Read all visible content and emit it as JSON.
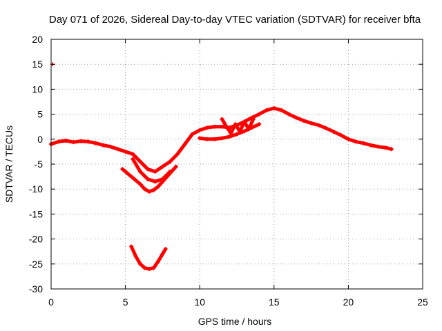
{
  "chart_data": {
    "type": "scatter",
    "title": "Day 071 of 2026, Sidereal Day-to-day VTEC variation (SDTVAR) for receiver bfta",
    "xlabel": "GPS time / hours",
    "ylabel": "SDTVAR / TECUs",
    "xlim": [
      0,
      25
    ],
    "ylim": [
      -30,
      20
    ],
    "xticks": [
      0,
      5,
      10,
      15,
      20,
      25
    ],
    "yticks": [
      -30,
      -25,
      -20,
      -15,
      -10,
      -5,
      0,
      5,
      10,
      15,
      20
    ],
    "grid": true,
    "marker_color": "#ff0000",
    "series": [
      {
        "name": "main-trend",
        "x": [
          0,
          0.5,
          1,
          1.5,
          2,
          2.5,
          3,
          3.5,
          4,
          4.5,
          5,
          5.5,
          6,
          6.5,
          7,
          7.5,
          8,
          8.5,
          9,
          9.5,
          10,
          10.5,
          11,
          11.5,
          12,
          12.5,
          13,
          13.5,
          14,
          14.5,
          15,
          15.5,
          16,
          16.5,
          17,
          17.5,
          18,
          18.5,
          19,
          19.5,
          20,
          20.5,
          21,
          21.5,
          22,
          22.5,
          22.9
        ],
        "y": [
          -1,
          -0.5,
          -0.3,
          -0.6,
          -0.4,
          -0.5,
          -0.8,
          -1.2,
          -1.5,
          -2,
          -2.5,
          -3,
          -4.5,
          -6,
          -6.5,
          -5.5,
          -4.5,
          -3,
          -1,
          1,
          1.8,
          2.3,
          2.5,
          2.5,
          2.3,
          2.8,
          3.5,
          4.3,
          5,
          5.8,
          6.2,
          5.8,
          5,
          4.3,
          3.7,
          3.2,
          2.8,
          2.2,
          1.5,
          0.8,
          0,
          -0.5,
          -0.8,
          -1.2,
          -1.5,
          -1.7,
          -2
        ]
      },
      {
        "name": "dip-branch",
        "x": [
          5.5,
          6,
          6.5,
          7,
          7.5,
          8
        ],
        "y": [
          -4,
          -6.5,
          -8,
          -8.5,
          -8,
          -6.5
        ]
      },
      {
        "name": "lower-branch",
        "x": [
          4.8,
          5.2,
          5.6,
          6,
          6.3,
          6.6,
          6.9,
          7.2,
          7.5,
          7.8,
          8.1,
          8.4
        ],
        "y": [
          -6,
          -7,
          -8,
          -9,
          -10,
          -10.5,
          -10.2,
          -9.5,
          -8.5,
          -7.5,
          -6.5,
          -5.5
        ]
      },
      {
        "name": "deep-arc",
        "x": [
          5.4,
          5.7,
          6,
          6.3,
          6.6,
          6.9,
          7.2,
          7.5,
          7.7
        ],
        "y": [
          -21.5,
          -23.5,
          -25,
          -25.8,
          -26,
          -25.8,
          -24.5,
          -23,
          -22
        ]
      },
      {
        "name": "mid-branch",
        "x": [
          10,
          10.5,
          11,
          11.5,
          12,
          12.5,
          13,
          13.5,
          14
        ],
        "y": [
          0.2,
          0,
          0,
          0.2,
          0.5,
          1,
          1.6,
          2.3,
          3
        ]
      },
      {
        "name": "cluster-12",
        "x": [
          11.5,
          11.8,
          12.1,
          12.4,
          12.7,
          13,
          13.3,
          13.6
        ],
        "y": [
          4,
          2.5,
          1.2,
          3,
          1.5,
          3.5,
          2,
          4
        ]
      },
      {
        "name": "outlier",
        "x": [
          0.1
        ],
        "y": [
          15
        ]
      }
    ]
  }
}
